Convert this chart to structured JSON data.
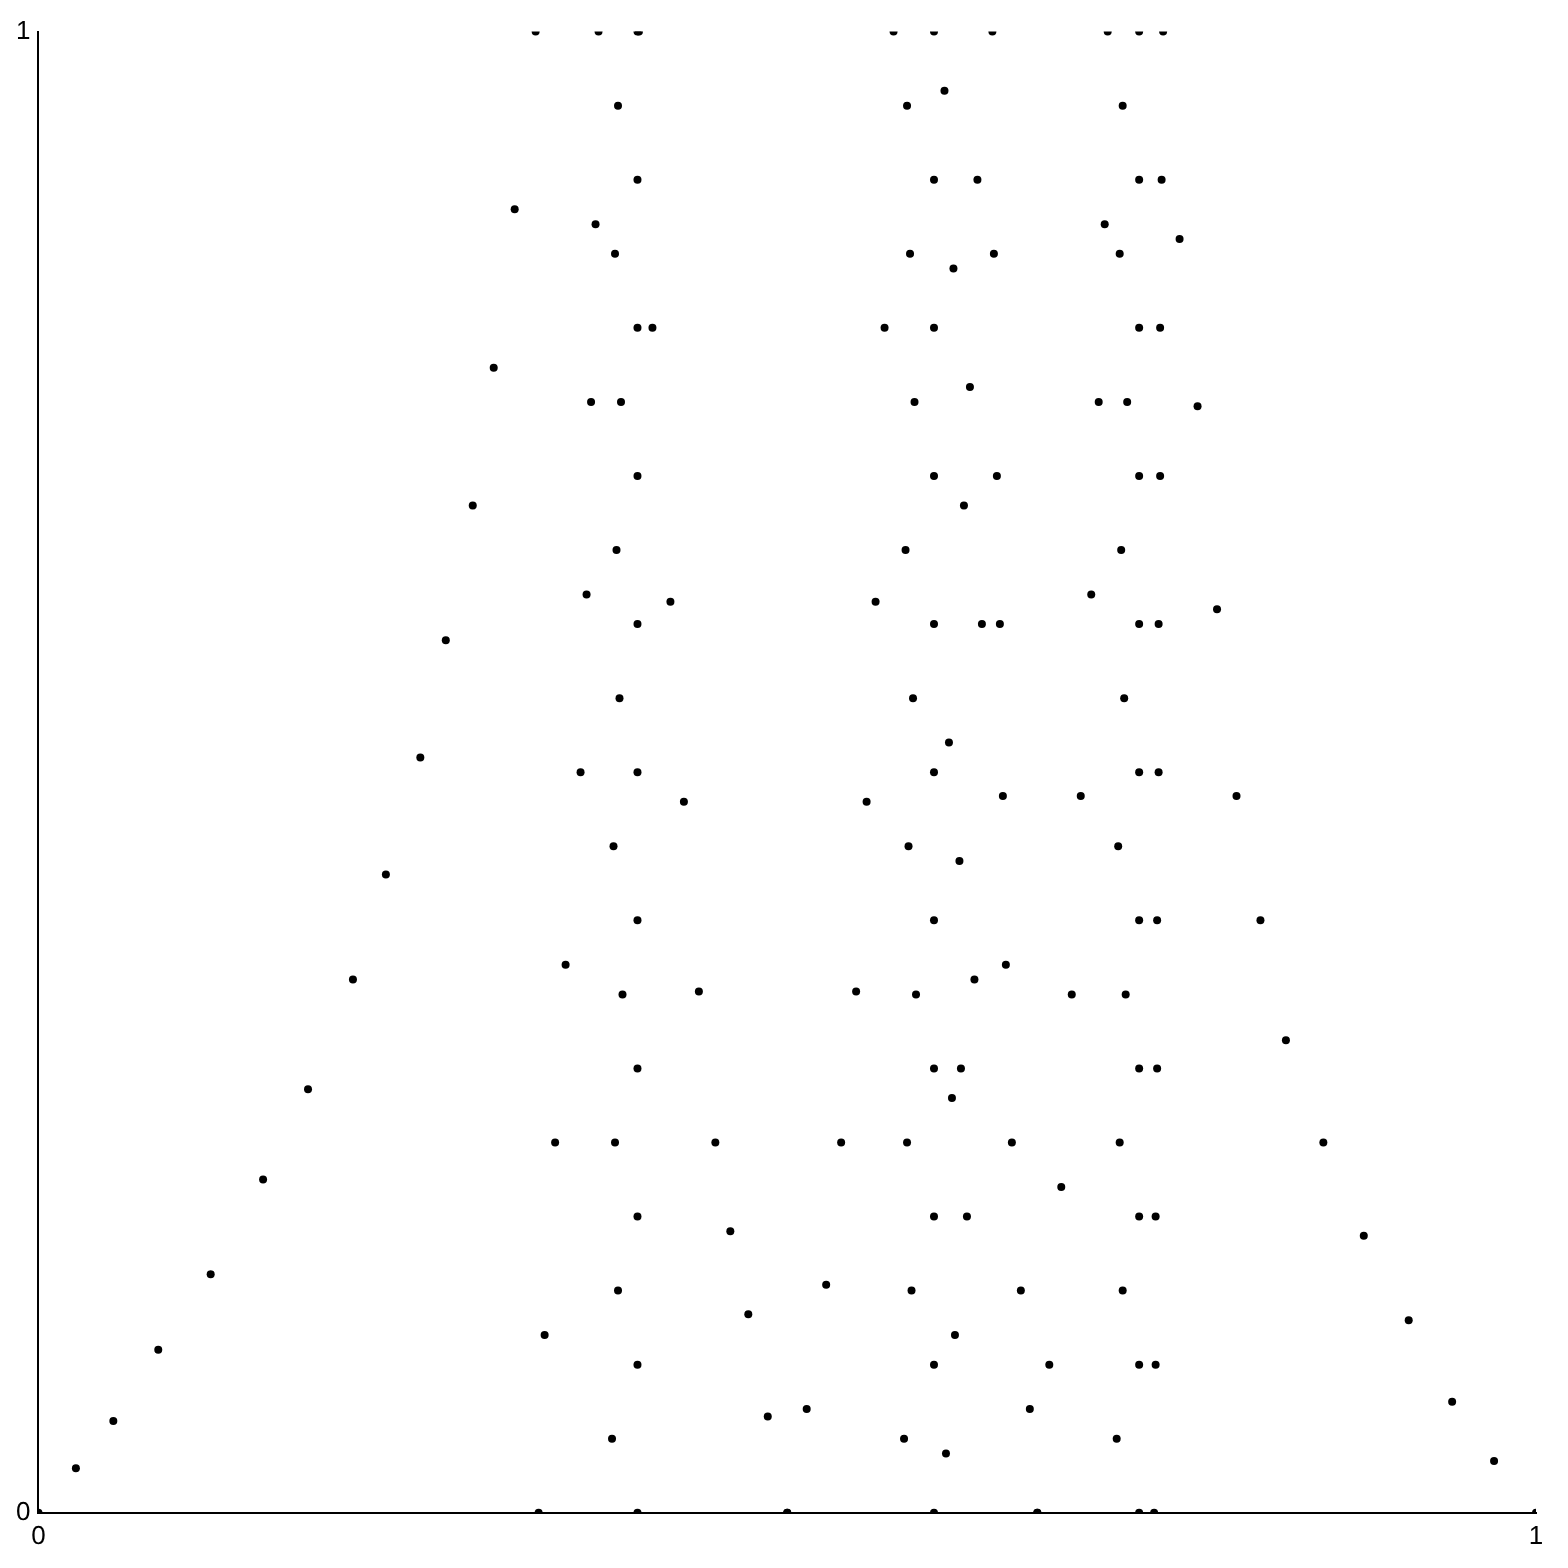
{
  "chart_data": {
    "type": "scatter",
    "xlim": [
      0,
      1
    ],
    "ylim": [
      0,
      1
    ],
    "xticks": [
      0,
      1
    ],
    "yticks": [
      0,
      1
    ],
    "grid": false,
    "legend": false,
    "marker": "circle",
    "series": [
      {
        "color": "#000000",
        "x": [
          0,
          0.025,
          0.05,
          0.08,
          0.115,
          0.15,
          0.18,
          0.21,
          0.232,
          0.255,
          0.272,
          0.29,
          0.304,
          0.318,
          0.332
        ],
        "values": [
          0,
          0.03,
          0.062,
          0.11,
          0.161,
          0.225,
          0.286,
          0.36,
          0.431,
          0.51,
          0.589,
          0.68,
          0.773,
          0.88,
          1
        ]
      },
      {
        "color": "#000000",
        "x": [
          0.334,
          0.338,
          0.345,
          0.352,
          0.362,
          0.366,
          0.369,
          0.372,
          0.374
        ],
        "values": [
          0,
          0.12,
          0.25,
          0.37,
          0.5,
          0.62,
          0.75,
          0.87,
          1
        ]
      },
      {
        "color": "#000000",
        "x": [
          0.4,
          0.4,
          0.4,
          0.4,
          0.4,
          0.4,
          0.4,
          0.4,
          0.4,
          0.4,
          0.4
        ],
        "values": [
          0,
          0.1,
          0.2,
          0.3,
          0.4,
          0.5,
          0.6,
          0.7,
          0.8,
          0.9,
          1
        ]
      },
      {
        "color": "#000000",
        "x": [
          0.383,
          0.387,
          0.385,
          0.39,
          0.384,
          0.388,
          0.386,
          0.389,
          0.385,
          0.387
        ],
        "values": [
          0.05,
          0.15,
          0.25,
          0.35,
          0.45,
          0.55,
          0.65,
          0.75,
          0.85,
          0.95
        ]
      },
      {
        "color": "#000000",
        "x": [
          0.401,
          0.41,
          0.422,
          0.431,
          0.441,
          0.452,
          0.462,
          0.474,
          0.487,
          0.5
        ],
        "values": [
          1,
          0.8,
          0.615,
          0.48,
          0.352,
          0.25,
          0.19,
          0.134,
          0.065,
          0
        ]
      },
      {
        "color": "#000000",
        "x": [
          0.5,
          0.513,
          0.526,
          0.536,
          0.546,
          0.553,
          0.559,
          0.565,
          0.571
        ],
        "values": [
          0,
          0.07,
          0.154,
          0.25,
          0.352,
          0.48,
          0.615,
          0.8,
          1
        ]
      },
      {
        "color": "#000000",
        "x": [
          0.598,
          0.598,
          0.598,
          0.598,
          0.598,
          0.598,
          0.598,
          0.598,
          0.598,
          0.598,
          0.598
        ],
        "values": [
          0,
          0.1,
          0.2,
          0.3,
          0.4,
          0.5,
          0.6,
          0.7,
          0.8,
          0.9,
          1
        ]
      },
      {
        "color": "#000000",
        "x": [
          0.578,
          0.583,
          0.58,
          0.586,
          0.581,
          0.584,
          0.579,
          0.585,
          0.582,
          0.58,
          0.606,
          0.612,
          0.62,
          0.61,
          0.625,
          0.615,
          0.608,
          0.63,
          0.618,
          0.622,
          0.611,
          0.627,
          0.605,
          0.616
        ],
        "values": [
          0.05,
          0.15,
          0.25,
          0.35,
          0.45,
          0.55,
          0.65,
          0.75,
          0.85,
          0.95,
          0.04,
          0.12,
          0.2,
          0.28,
          0.36,
          0.44,
          0.52,
          0.6,
          0.68,
          0.76,
          0.84,
          0.9,
          0.96,
          0.3
        ]
      },
      {
        "color": "#000000",
        "x": [
          0.637,
          0.638,
          0.64,
          0.642,
          0.644,
          0.646,
          0.65,
          0.656,
          0.662,
          0.667
        ],
        "values": [
          1,
          0.85,
          0.7,
          0.6,
          0.484,
          0.37,
          0.25,
          0.15,
          0.07,
          0
        ]
      },
      {
        "color": "#000000",
        "x": [
          0.667,
          0.675,
          0.683,
          0.69,
          0.696,
          0.703,
          0.708,
          0.712,
          0.714
        ],
        "values": [
          0,
          0.1,
          0.22,
          0.35,
          0.484,
          0.62,
          0.75,
          0.87,
          1
        ]
      },
      {
        "color": "#000000",
        "x": [
          0.735,
          0.735,
          0.735,
          0.735,
          0.735,
          0.735,
          0.735,
          0.735,
          0.735,
          0.735,
          0.735
        ],
        "values": [
          0,
          0.1,
          0.2,
          0.3,
          0.4,
          0.5,
          0.6,
          0.7,
          0.8,
          0.9,
          1
        ]
      },
      {
        "color": "#000000",
        "x": [
          0.72,
          0.724,
          0.722,
          0.726,
          0.721,
          0.725,
          0.723,
          0.727,
          0.722,
          0.724
        ],
        "values": [
          0.05,
          0.15,
          0.25,
          0.35,
          0.45,
          0.55,
          0.65,
          0.75,
          0.85,
          0.95
        ]
      },
      {
        "color": "#000000",
        "x": [
          0.751,
          0.75,
          0.749,
          0.749,
          0.748,
          0.748,
          0.747,
          0.747,
          0.746,
          0.746,
          0.745
        ],
        "values": [
          1,
          0.9,
          0.8,
          0.7,
          0.6,
          0.5,
          0.4,
          0.3,
          0.2,
          0.1,
          0
        ]
      },
      {
        "color": "#000000",
        "x": [
          0.762,
          0.774,
          0.787,
          0.8,
          0.816,
          0.833,
          0.858,
          0.885,
          0.915,
          0.944,
          0.972,
          1
        ],
        "values": [
          0.86,
          0.747,
          0.61,
          0.484,
          0.4,
          0.319,
          0.25,
          0.187,
          0.13,
          0.075,
          0.035,
          0
        ]
      }
    ]
  }
}
